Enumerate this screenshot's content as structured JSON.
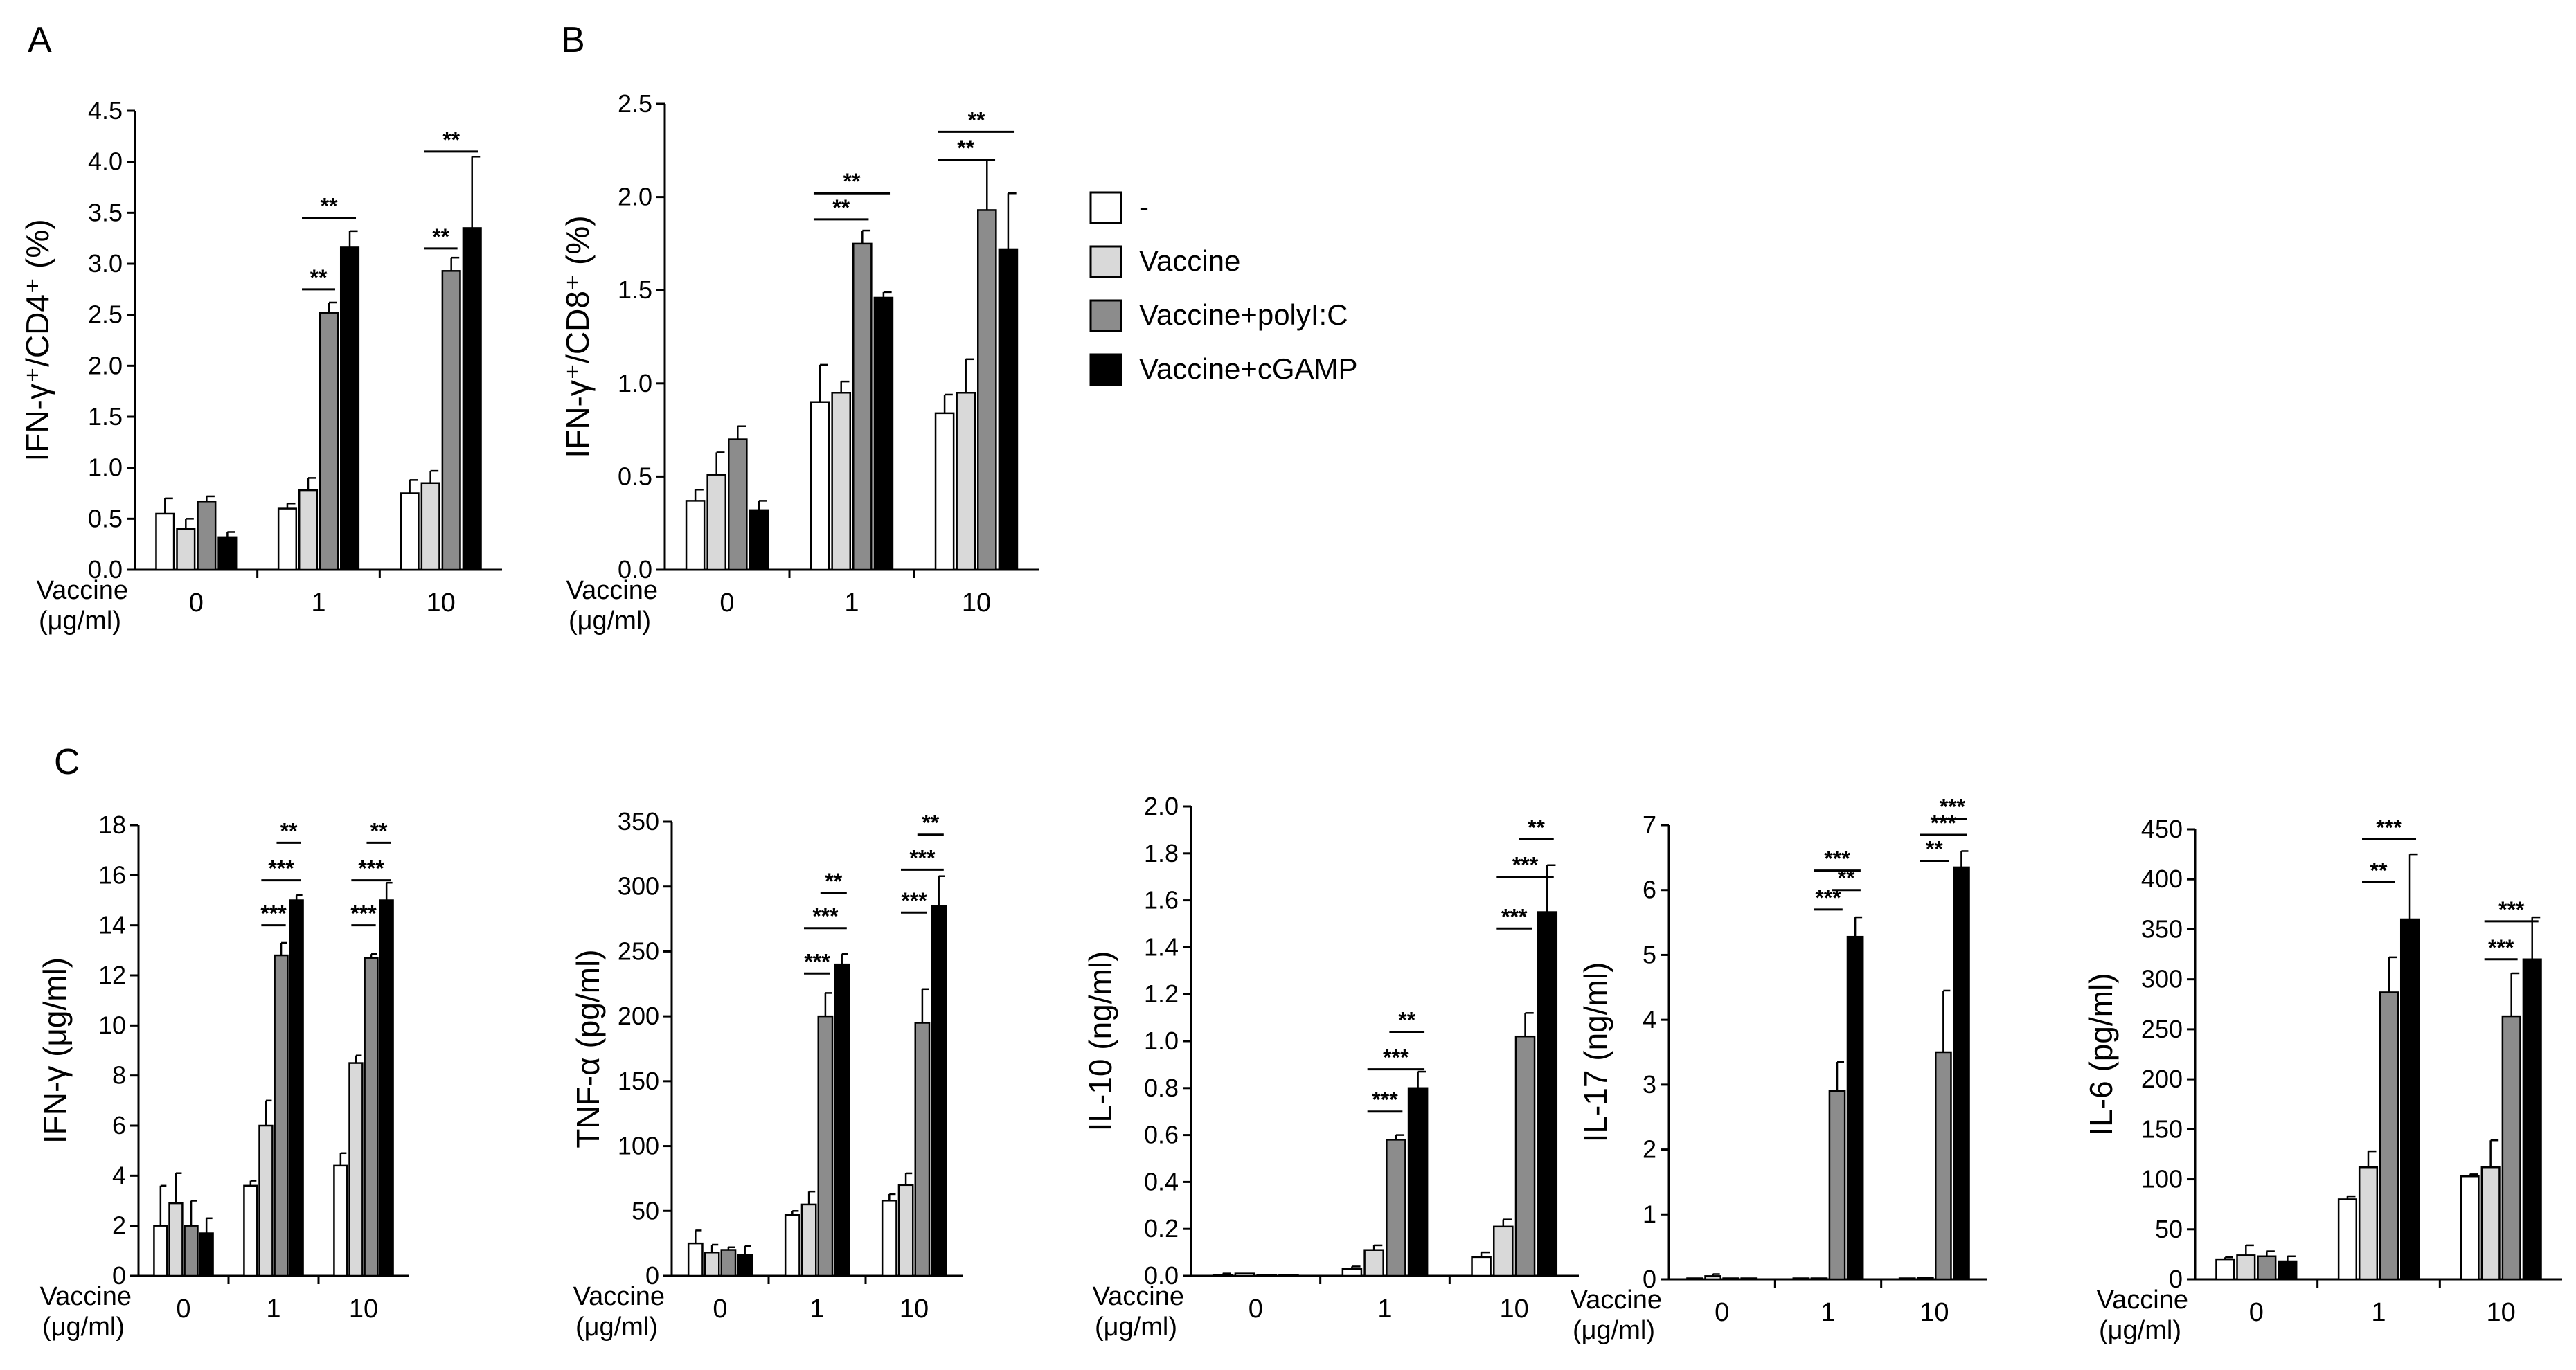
{
  "colors": {
    "none": "#ffffff",
    "vaccine": "#d9d9d9",
    "polyic": "#8c8c8c",
    "cgamp": "#000000",
    "axis": "#000000"
  },
  "legend": {
    "items": [
      {
        "label": "-",
        "color_key": "none"
      },
      {
        "label": "Vaccine",
        "color_key": "vaccine"
      },
      {
        "label": "Vaccine+polyI:C",
        "color_key": "polyic"
      },
      {
        "label": "Vaccine+cGAMP",
        "color_key": "cgamp"
      }
    ]
  },
  "xaxis": {
    "label_line1": "Vaccine",
    "label_line2": "(μg/ml)"
  },
  "chart_data": [
    {
      "id": "A",
      "type": "bar",
      "panel_label": "A",
      "ylabel": "IFN-γ⁺/CD4⁺ (%)",
      "ylim": [
        0,
        4.5
      ],
      "ytick_step": 0.5,
      "tick_decimals": 1,
      "categories": [
        "0",
        "1",
        "10"
      ],
      "series": [
        {
          "name": "-",
          "color_key": "none",
          "values": [
            0.55,
            0.6,
            0.75
          ],
          "errors": [
            0.15,
            0.05,
            0.13
          ]
        },
        {
          "name": "Vaccine",
          "color_key": "vaccine",
          "values": [
            0.4,
            0.78,
            0.85
          ],
          "errors": [
            0.1,
            0.12,
            0.12
          ]
        },
        {
          "name": "Vaccine+polyI:C",
          "color_key": "polyic",
          "values": [
            0.67,
            2.52,
            2.93
          ],
          "errors": [
            0.05,
            0.1,
            0.13
          ]
        },
        {
          "name": "Vaccine+cGAMP",
          "color_key": "cgamp",
          "values": [
            0.32,
            3.16,
            3.35
          ],
          "errors": [
            0.05,
            0.16,
            0.7
          ]
        }
      ],
      "significance": [
        {
          "group": 1,
          "from": 1,
          "to": 2,
          "label": "**",
          "y": 2.75
        },
        {
          "group": 1,
          "from": 1,
          "to": 3,
          "label": "**",
          "y": 3.45
        },
        {
          "group": 2,
          "from": 1,
          "to": 2,
          "label": "**",
          "y": 3.15
        },
        {
          "group": 2,
          "from": 1,
          "to": 3,
          "label": "**",
          "y": 4.1
        }
      ]
    },
    {
      "id": "B",
      "type": "bar",
      "panel_label": "B",
      "ylabel": "IFN-γ⁺/CD8⁺ (%)",
      "ylim": [
        0,
        2.5
      ],
      "ytick_step": 0.5,
      "tick_decimals": 1,
      "categories": [
        "0",
        "1",
        "10"
      ],
      "series": [
        {
          "name": "-",
          "color_key": "none",
          "values": [
            0.37,
            0.9,
            0.84
          ],
          "errors": [
            0.06,
            0.2,
            0.1
          ]
        },
        {
          "name": "Vaccine",
          "color_key": "vaccine",
          "values": [
            0.51,
            0.95,
            0.95
          ],
          "errors": [
            0.12,
            0.06,
            0.18
          ]
        },
        {
          "name": "Vaccine+polyI:C",
          "color_key": "polyic",
          "values": [
            0.7,
            1.75,
            1.93
          ],
          "errors": [
            0.07,
            0.07,
            0.27
          ]
        },
        {
          "name": "Vaccine+cGAMP",
          "color_key": "cgamp",
          "values": [
            0.32,
            1.46,
            1.72
          ],
          "errors": [
            0.05,
            0.03,
            0.3
          ]
        }
      ],
      "significance": [
        {
          "group": 1,
          "from": 0,
          "to": 2,
          "label": "**",
          "y": 1.88
        },
        {
          "group": 1,
          "from": 0,
          "to": 3,
          "label": "**",
          "y": 2.02
        },
        {
          "group": 2,
          "from": 0,
          "to": 2,
          "label": "**",
          "y": 2.2
        },
        {
          "group": 2,
          "from": 0,
          "to": 3,
          "label": "**",
          "y": 2.35
        }
      ]
    },
    {
      "id": "C1",
      "type": "bar",
      "panel_label": "C",
      "ylabel": "IFN-γ (μg/ml)",
      "ylim": [
        0,
        18
      ],
      "ytick_step": 2,
      "tick_decimals": 0,
      "categories": [
        "0",
        "1",
        "10"
      ],
      "series": [
        {
          "name": "-",
          "color_key": "none",
          "values": [
            2.0,
            3.6,
            4.4
          ],
          "errors": [
            1.6,
            0.2,
            0.5
          ]
        },
        {
          "name": "Vaccine",
          "color_key": "vaccine",
          "values": [
            2.9,
            6.0,
            8.5
          ],
          "errors": [
            1.2,
            1.0,
            0.3
          ]
        },
        {
          "name": "Vaccine+polyI:C",
          "color_key": "polyic",
          "values": [
            2.0,
            12.8,
            12.7
          ],
          "errors": [
            1.0,
            0.5,
            0.15
          ]
        },
        {
          "name": "Vaccine+cGAMP",
          "color_key": "cgamp",
          "values": [
            1.7,
            15.0,
            15.0
          ],
          "errors": [
            0.6,
            0.2,
            0.7
          ]
        }
      ],
      "significance": [
        {
          "group": 1,
          "from": 1,
          "to": 2,
          "label": "***",
          "y": 14.0
        },
        {
          "group": 1,
          "from": 1,
          "to": 3,
          "label": "***",
          "y": 15.8
        },
        {
          "group": 1,
          "from": 2,
          "to": 3,
          "label": "**",
          "y": 17.3
        },
        {
          "group": 2,
          "from": 1,
          "to": 2,
          "label": "***",
          "y": 14.0
        },
        {
          "group": 2,
          "from": 1,
          "to": 3,
          "label": "***",
          "y": 15.8
        },
        {
          "group": 2,
          "from": 2,
          "to": 3,
          "label": "**",
          "y": 17.3
        }
      ]
    },
    {
      "id": "C2",
      "type": "bar",
      "panel_label": "",
      "ylabel": "TNF-α (pg/ml)",
      "ylim": [
        0,
        350
      ],
      "ytick_step": 50,
      "tick_decimals": 0,
      "categories": [
        "0",
        "1",
        "10"
      ],
      "series": [
        {
          "name": "-",
          "color_key": "none",
          "values": [
            25,
            47,
            58
          ],
          "errors": [
            10,
            3,
            5
          ]
        },
        {
          "name": "Vaccine",
          "color_key": "vaccine",
          "values": [
            18,
            55,
            70
          ],
          "errors": [
            6,
            10,
            9
          ]
        },
        {
          "name": "Vaccine+polyI:C",
          "color_key": "polyic",
          "values": [
            20,
            200,
            195
          ],
          "errors": [
            2,
            18,
            26
          ]
        },
        {
          "name": "Vaccine+cGAMP",
          "color_key": "cgamp",
          "values": [
            16,
            240,
            285
          ],
          "errors": [
            7,
            8,
            23
          ]
        }
      ],
      "significance": [
        {
          "group": 1,
          "from": 1,
          "to": 2,
          "label": "***",
          "y": 233
        },
        {
          "group": 1,
          "from": 1,
          "to": 3,
          "label": "***",
          "y": 268
        },
        {
          "group": 1,
          "from": 2,
          "to": 3,
          "label": "**",
          "y": 295
        },
        {
          "group": 2,
          "from": 1,
          "to": 2,
          "label": "***",
          "y": 280
        },
        {
          "group": 2,
          "from": 1,
          "to": 3,
          "label": "***",
          "y": 313
        },
        {
          "group": 2,
          "from": 2,
          "to": 3,
          "label": "**",
          "y": 340
        }
      ]
    },
    {
      "id": "C3",
      "type": "bar",
      "panel_label": "",
      "ylabel": "IL-10 (ng/ml)",
      "ylim": [
        0,
        2.0
      ],
      "ytick_step": 0.2,
      "tick_decimals": 1,
      "categories": [
        "0",
        "1",
        "10"
      ],
      "series": [
        {
          "name": "-",
          "color_key": "none",
          "values": [
            0.0,
            0.03,
            0.08
          ],
          "errors": [
            0.01,
            0.01,
            0.02
          ]
        },
        {
          "name": "Vaccine",
          "color_key": "vaccine",
          "values": [
            0.01,
            0.11,
            0.21
          ],
          "errors": [
            0.0,
            0.02,
            0.03
          ]
        },
        {
          "name": "Vaccine+polyI:C",
          "color_key": "polyic",
          "values": [
            0.0,
            0.58,
            1.02
          ],
          "errors": [
            0.0,
            0.02,
            0.1
          ]
        },
        {
          "name": "Vaccine+cGAMP",
          "color_key": "cgamp",
          "values": [
            0.0,
            0.8,
            1.55
          ],
          "errors": [
            0.0,
            0.07,
            0.2
          ]
        }
      ],
      "significance": [
        {
          "group": 1,
          "from": 1,
          "to": 2,
          "label": "***",
          "y": 0.7
        },
        {
          "group": 1,
          "from": 1,
          "to": 3,
          "label": "***",
          "y": 0.88
        },
        {
          "group": 1,
          "from": 2,
          "to": 3,
          "label": "**",
          "y": 1.04
        },
        {
          "group": 2,
          "from": 1,
          "to": 2,
          "label": "***",
          "y": 1.48
        },
        {
          "group": 2,
          "from": 1,
          "to": 3,
          "label": "***",
          "y": 1.7
        },
        {
          "group": 2,
          "from": 2,
          "to": 3,
          "label": "**",
          "y": 1.86
        }
      ]
    },
    {
      "id": "C4",
      "type": "bar",
      "panel_label": "",
      "ylabel": "IL-17 (ng/ml)",
      "ylim": [
        0,
        7
      ],
      "ytick_step": 1,
      "tick_decimals": 0,
      "categories": [
        "0",
        "1",
        "10"
      ],
      "series": [
        {
          "name": "-",
          "color_key": "none",
          "values": [
            0.0,
            0.0,
            0.0
          ],
          "errors": [
            0.0,
            0.0,
            0.0
          ]
        },
        {
          "name": "Vaccine",
          "color_key": "vaccine",
          "values": [
            0.05,
            0.0,
            0.02
          ],
          "errors": [
            0.03,
            0.0,
            0.0
          ]
        },
        {
          "name": "Vaccine+polyI:C",
          "color_key": "polyic",
          "values": [
            0.0,
            2.9,
            3.5
          ],
          "errors": [
            0.0,
            0.45,
            0.95
          ]
        },
        {
          "name": "Vaccine+cGAMP",
          "color_key": "cgamp",
          "values": [
            0.0,
            5.28,
            6.35
          ],
          "errors": [
            0.0,
            0.3,
            0.25
          ]
        }
      ],
      "significance": [
        {
          "group": 1,
          "from": 2,
          "to": 3,
          "label": "**",
          "y": 6.0
        },
        {
          "group": 1,
          "from": 1,
          "to": 2,
          "label": "***",
          "y": 5.7
        },
        {
          "group": 1,
          "from": 1,
          "to": 3,
          "label": "***",
          "y": 6.3
        },
        {
          "group": 2,
          "from": 1,
          "to": 2,
          "label": "**",
          "y": 6.45
        },
        {
          "group": 2,
          "from": 1,
          "to": 3,
          "label": "***",
          "y": 6.85
        },
        {
          "group": 2,
          "from": 2,
          "to": 3,
          "label": "***",
          "y": 7.1
        }
      ]
    },
    {
      "id": "C5",
      "type": "bar",
      "panel_label": "",
      "ylabel": "IL-6 (pg/ml)",
      "ylim": [
        0,
        450
      ],
      "ytick_step": 50,
      "tick_decimals": 0,
      "categories": [
        "0",
        "1",
        "10"
      ],
      "series": [
        {
          "name": "-",
          "color_key": "none",
          "values": [
            20,
            80,
            103
          ],
          "errors": [
            2,
            3,
            2
          ]
        },
        {
          "name": "Vaccine",
          "color_key": "vaccine",
          "values": [
            24,
            112,
            112
          ],
          "errors": [
            10,
            16,
            27
          ]
        },
        {
          "name": "Vaccine+polyI:C",
          "color_key": "polyic",
          "values": [
            23,
            287,
            263
          ],
          "errors": [
            5,
            35,
            43
          ]
        },
        {
          "name": "Vaccine+cGAMP",
          "color_key": "cgamp",
          "values": [
            18,
            360,
            320
          ],
          "errors": [
            5,
            65,
            42
          ]
        }
      ],
      "significance": [
        {
          "group": 1,
          "from": 1,
          "to": 2,
          "label": "**",
          "y": 397
        },
        {
          "group": 1,
          "from": 1,
          "to": 3,
          "label": "***",
          "y": 440
        },
        {
          "group": 2,
          "from": 1,
          "to": 2,
          "label": "***",
          "y": 320
        },
        {
          "group": 2,
          "from": 1,
          "to": 3,
          "label": "***",
          "y": 358
        }
      ]
    }
  ]
}
